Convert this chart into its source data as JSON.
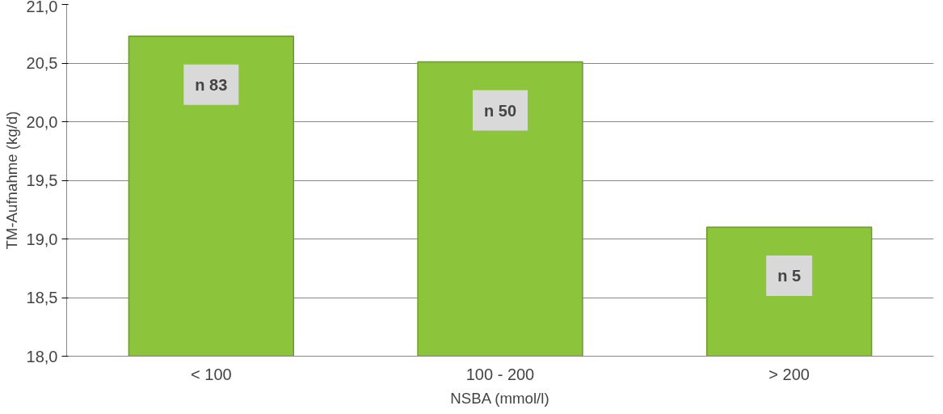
{
  "chart_data": {
    "type": "bar",
    "xlabel": "NSBA (mmol/l)",
    "ylabel": "TM-Aufnahme (kg/d)",
    "categories": [
      "< 100",
      "100 - 200",
      "> 200"
    ],
    "values": [
      20.73,
      20.51,
      19.1
    ],
    "color": "#8cc43c",
    "ylim": [
      18.0,
      21.0
    ],
    "yticks": [
      {
        "value": 18.0,
        "label": "18,0"
      },
      {
        "value": 18.5,
        "label": "18,5"
      },
      {
        "value": 19.0,
        "label": "19,0"
      },
      {
        "value": 19.5,
        "label": "19,5"
      },
      {
        "value": 20.0,
        "label": "20,0"
      },
      {
        "value": 20.5,
        "label": "20,5"
      },
      {
        "value": 21.0,
        "label": "21,0"
      }
    ],
    "grid": "y",
    "annotations": [
      "n 83",
      "n 50",
      "n 5"
    ]
  }
}
